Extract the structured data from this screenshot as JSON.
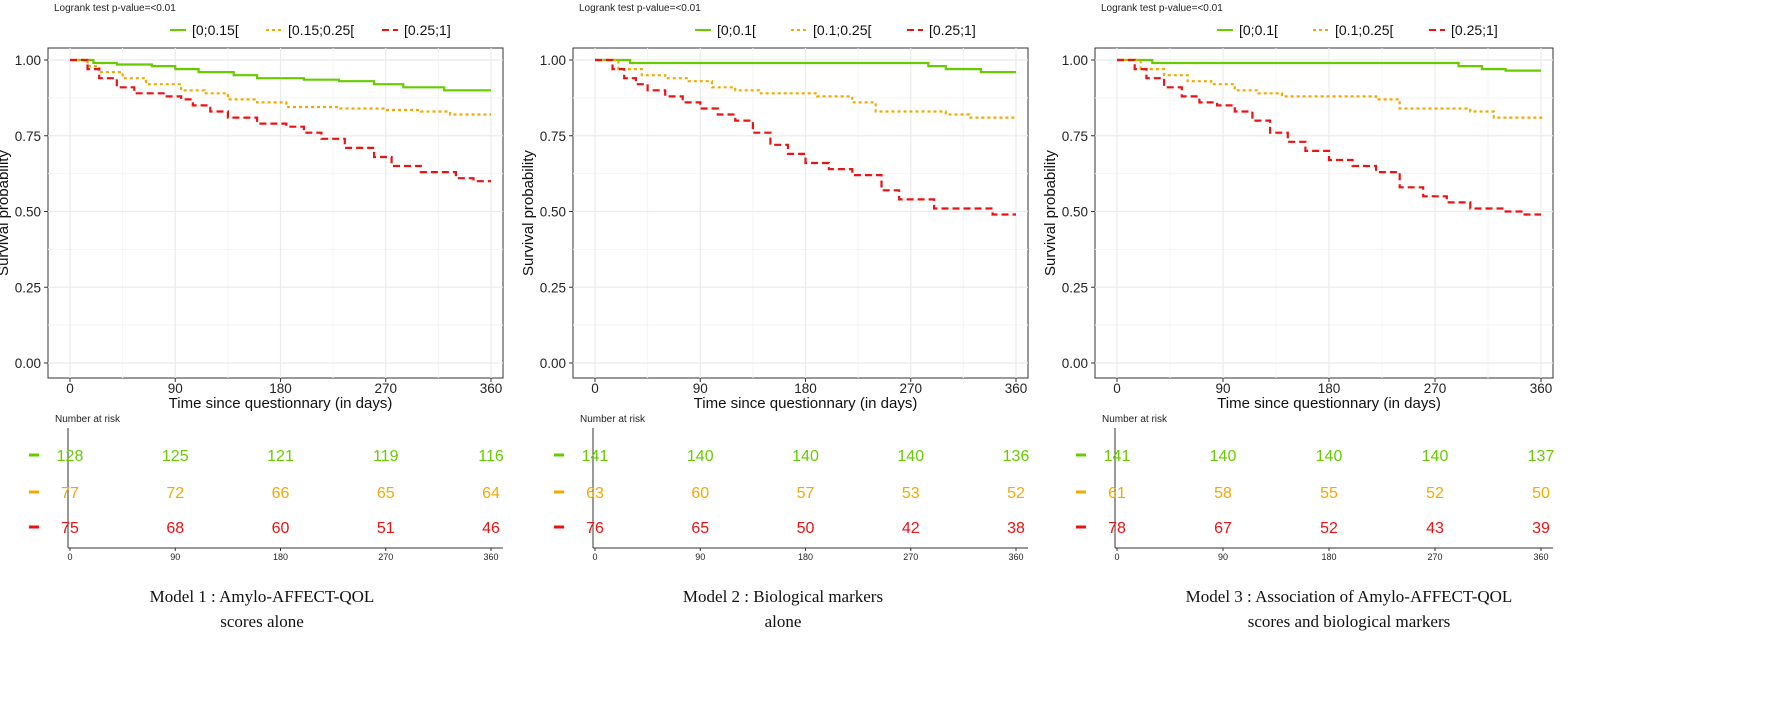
{
  "colors": {
    "green": "#66cc00",
    "orange": "#f5a800",
    "red": "#ee1111",
    "grid": "#ebebeb",
    "axis": "#333333"
  },
  "chart_data": [
    {
      "type": "line",
      "logrank": "Logrank test p-value=<0.01",
      "legend": [
        "[0;0.15[",
        "[0.15;0.25[",
        "[0.25;1]"
      ],
      "xlabel": "Time since questionnary (in days)",
      "ylabel": "Survival probability",
      "xlim": [
        0,
        360
      ],
      "ylim": [
        0,
        1
      ],
      "xticks": [
        "0",
        "90",
        "180",
        "270",
        "360"
      ],
      "yticks": [
        "0.00",
        "0.25",
        "0.50",
        "0.75",
        "1.00"
      ],
      "series": [
        {
          "name": "[0;0.15[",
          "color": "green",
          "dash": "solid",
          "points": [
            [
              0,
              1
            ],
            [
              20,
              0.99
            ],
            [
              40,
              0.985
            ],
            [
              70,
              0.98
            ],
            [
              90,
              0.97
            ],
            [
              110,
              0.96
            ],
            [
              140,
              0.95
            ],
            [
              160,
              0.94
            ],
            [
              200,
              0.935
            ],
            [
              230,
              0.93
            ],
            [
              260,
              0.92
            ],
            [
              285,
              0.91
            ],
            [
              320,
              0.9
            ],
            [
              360,
              0.9
            ]
          ]
        },
        {
          "name": "[0.15;0.25[",
          "color": "orange",
          "dash": "dot",
          "points": [
            [
              0,
              1
            ],
            [
              15,
              0.98
            ],
            [
              25,
              0.96
            ],
            [
              45,
              0.94
            ],
            [
              65,
              0.92
            ],
            [
              95,
              0.9
            ],
            [
              115,
              0.89
            ],
            [
              135,
              0.87
            ],
            [
              160,
              0.86
            ],
            [
              185,
              0.845
            ],
            [
              230,
              0.84
            ],
            [
              270,
              0.835
            ],
            [
              300,
              0.83
            ],
            [
              325,
              0.82
            ],
            [
              360,
              0.82
            ]
          ]
        },
        {
          "name": "[0.25;1]",
          "color": "red",
          "dash": "dash",
          "points": [
            [
              0,
              1
            ],
            [
              15,
              0.97
            ],
            [
              25,
              0.94
            ],
            [
              40,
              0.91
            ],
            [
              55,
              0.89
            ],
            [
              80,
              0.88
            ],
            [
              95,
              0.87
            ],
            [
              105,
              0.85
            ],
            [
              120,
              0.83
            ],
            [
              135,
              0.81
            ],
            [
              160,
              0.79
            ],
            [
              185,
              0.78
            ],
            [
              200,
              0.76
            ],
            [
              215,
              0.74
            ],
            [
              235,
              0.71
            ],
            [
              260,
              0.68
            ],
            [
              275,
              0.65
            ],
            [
              300,
              0.63
            ],
            [
              330,
              0.61
            ],
            [
              345,
              0.6
            ],
            [
              360,
              0.6
            ]
          ]
        }
      ],
      "risk": {
        "title": "Number at risk",
        "ticks": [
          "0",
          "90",
          "180",
          "270",
          "360"
        ],
        "rows": [
          [
            "128",
            "125",
            "121",
            "119",
            "116"
          ],
          [
            "77",
            "72",
            "66",
            "65",
            "64"
          ],
          [
            "75",
            "68",
            "60",
            "51",
            "46"
          ]
        ]
      },
      "caption": [
        "Model 1 : Amylo-AFFECT-QOL",
        "scores alone"
      ]
    },
    {
      "type": "line",
      "logrank": "Logrank test p-value=<0.01",
      "legend": [
        "[0;0.1[",
        "[0.1;0.25[",
        "[0.25;1]"
      ],
      "xlabel": "Time since questionnary (in days)",
      "ylabel": "Survival probability",
      "xlim": [
        0,
        360
      ],
      "ylim": [
        0,
        1
      ],
      "xticks": [
        "0",
        "90",
        "180",
        "270",
        "360"
      ],
      "yticks": [
        "0.00",
        "0.25",
        "0.50",
        "0.75",
        "1.00"
      ],
      "series": [
        {
          "name": "[0;0.1[",
          "color": "green",
          "dash": "solid",
          "points": [
            [
              0,
              1
            ],
            [
              30,
              0.99
            ],
            [
              60,
              0.99
            ],
            [
              120,
              0.99
            ],
            [
              200,
              0.99
            ],
            [
              270,
              0.99
            ],
            [
              285,
              0.98
            ],
            [
              300,
              0.97
            ],
            [
              330,
              0.96
            ],
            [
              360,
              0.96
            ]
          ]
        },
        {
          "name": "[0.1;0.25[",
          "color": "orange",
          "dash": "dot",
          "points": [
            [
              0,
              1
            ],
            [
              20,
              0.97
            ],
            [
              40,
              0.95
            ],
            [
              60,
              0.94
            ],
            [
              80,
              0.93
            ],
            [
              100,
              0.91
            ],
            [
              120,
              0.9
            ],
            [
              140,
              0.89
            ],
            [
              190,
              0.88
            ],
            [
              220,
              0.86
            ],
            [
              240,
              0.83
            ],
            [
              280,
              0.83
            ],
            [
              300,
              0.82
            ],
            [
              320,
              0.81
            ],
            [
              360,
              0.81
            ]
          ]
        },
        {
          "name": "[0.25;1]",
          "color": "red",
          "dash": "dash",
          "points": [
            [
              0,
              1
            ],
            [
              15,
              0.97
            ],
            [
              25,
              0.94
            ],
            [
              35,
              0.92
            ],
            [
              45,
              0.9
            ],
            [
              60,
              0.88
            ],
            [
              75,
              0.86
            ],
            [
              90,
              0.84
            ],
            [
              105,
              0.82
            ],
            [
              120,
              0.8
            ],
            [
              135,
              0.76
            ],
            [
              150,
              0.72
            ],
            [
              165,
              0.69
            ],
            [
              180,
              0.66
            ],
            [
              200,
              0.64
            ],
            [
              220,
              0.62
            ],
            [
              245,
              0.57
            ],
            [
              260,
              0.54
            ],
            [
              275,
              0.54
            ],
            [
              290,
              0.51
            ],
            [
              320,
              0.51
            ],
            [
              340,
              0.49
            ],
            [
              360,
              0.49
            ]
          ]
        }
      ],
      "risk": {
        "title": "Number at risk",
        "ticks": [
          "0",
          "90",
          "180",
          "270",
          "360"
        ],
        "rows": [
          [
            "141",
            "140",
            "140",
            "140",
            "136"
          ],
          [
            "63",
            "60",
            "57",
            "53",
            "52"
          ],
          [
            "76",
            "65",
            "50",
            "42",
            "38"
          ]
        ]
      },
      "caption": [
        "Model 2 : Biological  markers",
        "alone"
      ]
    },
    {
      "type": "line",
      "logrank": "Logrank test p-value=<0.01",
      "legend": [
        "[0;0.1[",
        "[0.1;0.25[",
        "[0.25;1]"
      ],
      "xlabel": "Time since questionnary (in days)",
      "ylabel": "Survival probability",
      "xlim": [
        0,
        360
      ],
      "ylim": [
        0,
        1
      ],
      "xticks": [
        "0",
        "90",
        "180",
        "270",
        "360"
      ],
      "yticks": [
        "0.00",
        "0.25",
        "0.50",
        "0.75",
        "1.00"
      ],
      "series": [
        {
          "name": "[0;0.1[",
          "color": "green",
          "dash": "solid",
          "points": [
            [
              0,
              1
            ],
            [
              30,
              0.99
            ],
            [
              60,
              0.99
            ],
            [
              150,
              0.99
            ],
            [
              250,
              0.99
            ],
            [
              280,
              0.99
            ],
            [
              290,
              0.98
            ],
            [
              310,
              0.97
            ],
            [
              330,
              0.965
            ],
            [
              360,
              0.965
            ]
          ]
        },
        {
          "name": "[0.1;0.25[",
          "color": "orange",
          "dash": "dot",
          "points": [
            [
              0,
              1
            ],
            [
              20,
              0.97
            ],
            [
              40,
              0.95
            ],
            [
              60,
              0.93
            ],
            [
              80,
              0.92
            ],
            [
              100,
              0.9
            ],
            [
              120,
              0.89
            ],
            [
              140,
              0.88
            ],
            [
              190,
              0.88
            ],
            [
              220,
              0.87
            ],
            [
              240,
              0.84
            ],
            [
              280,
              0.84
            ],
            [
              300,
              0.83
            ],
            [
              320,
              0.81
            ],
            [
              360,
              0.8
            ]
          ]
        },
        {
          "name": "[0.25;1]",
          "color": "red",
          "dash": "dash",
          "points": [
            [
              0,
              1
            ],
            [
              15,
              0.97
            ],
            [
              25,
              0.94
            ],
            [
              40,
              0.91
            ],
            [
              55,
              0.88
            ],
            [
              70,
              0.86
            ],
            [
              85,
              0.85
            ],
            [
              100,
              0.83
            ],
            [
              115,
              0.8
            ],
            [
              130,
              0.76
            ],
            [
              145,
              0.73
            ],
            [
              160,
              0.7
            ],
            [
              180,
              0.67
            ],
            [
              200,
              0.65
            ],
            [
              220,
              0.63
            ],
            [
              240,
              0.58
            ],
            [
              260,
              0.55
            ],
            [
              280,
              0.53
            ],
            [
              300,
              0.51
            ],
            [
              330,
              0.5
            ],
            [
              345,
              0.49
            ],
            [
              360,
              0.49
            ]
          ]
        }
      ],
      "risk": {
        "title": "Number at risk",
        "ticks": [
          "0",
          "90",
          "180",
          "270",
          "360"
        ],
        "rows": [
          [
            "141",
            "140",
            "140",
            "140",
            "137"
          ],
          [
            "61",
            "58",
            "55",
            "52",
            "50"
          ],
          [
            "78",
            "67",
            "52",
            "43",
            "39"
          ]
        ]
      },
      "caption": [
        "Model 3 : Association of Amylo-AFFECT-QOL",
        "scores and biological  markers"
      ]
    }
  ]
}
